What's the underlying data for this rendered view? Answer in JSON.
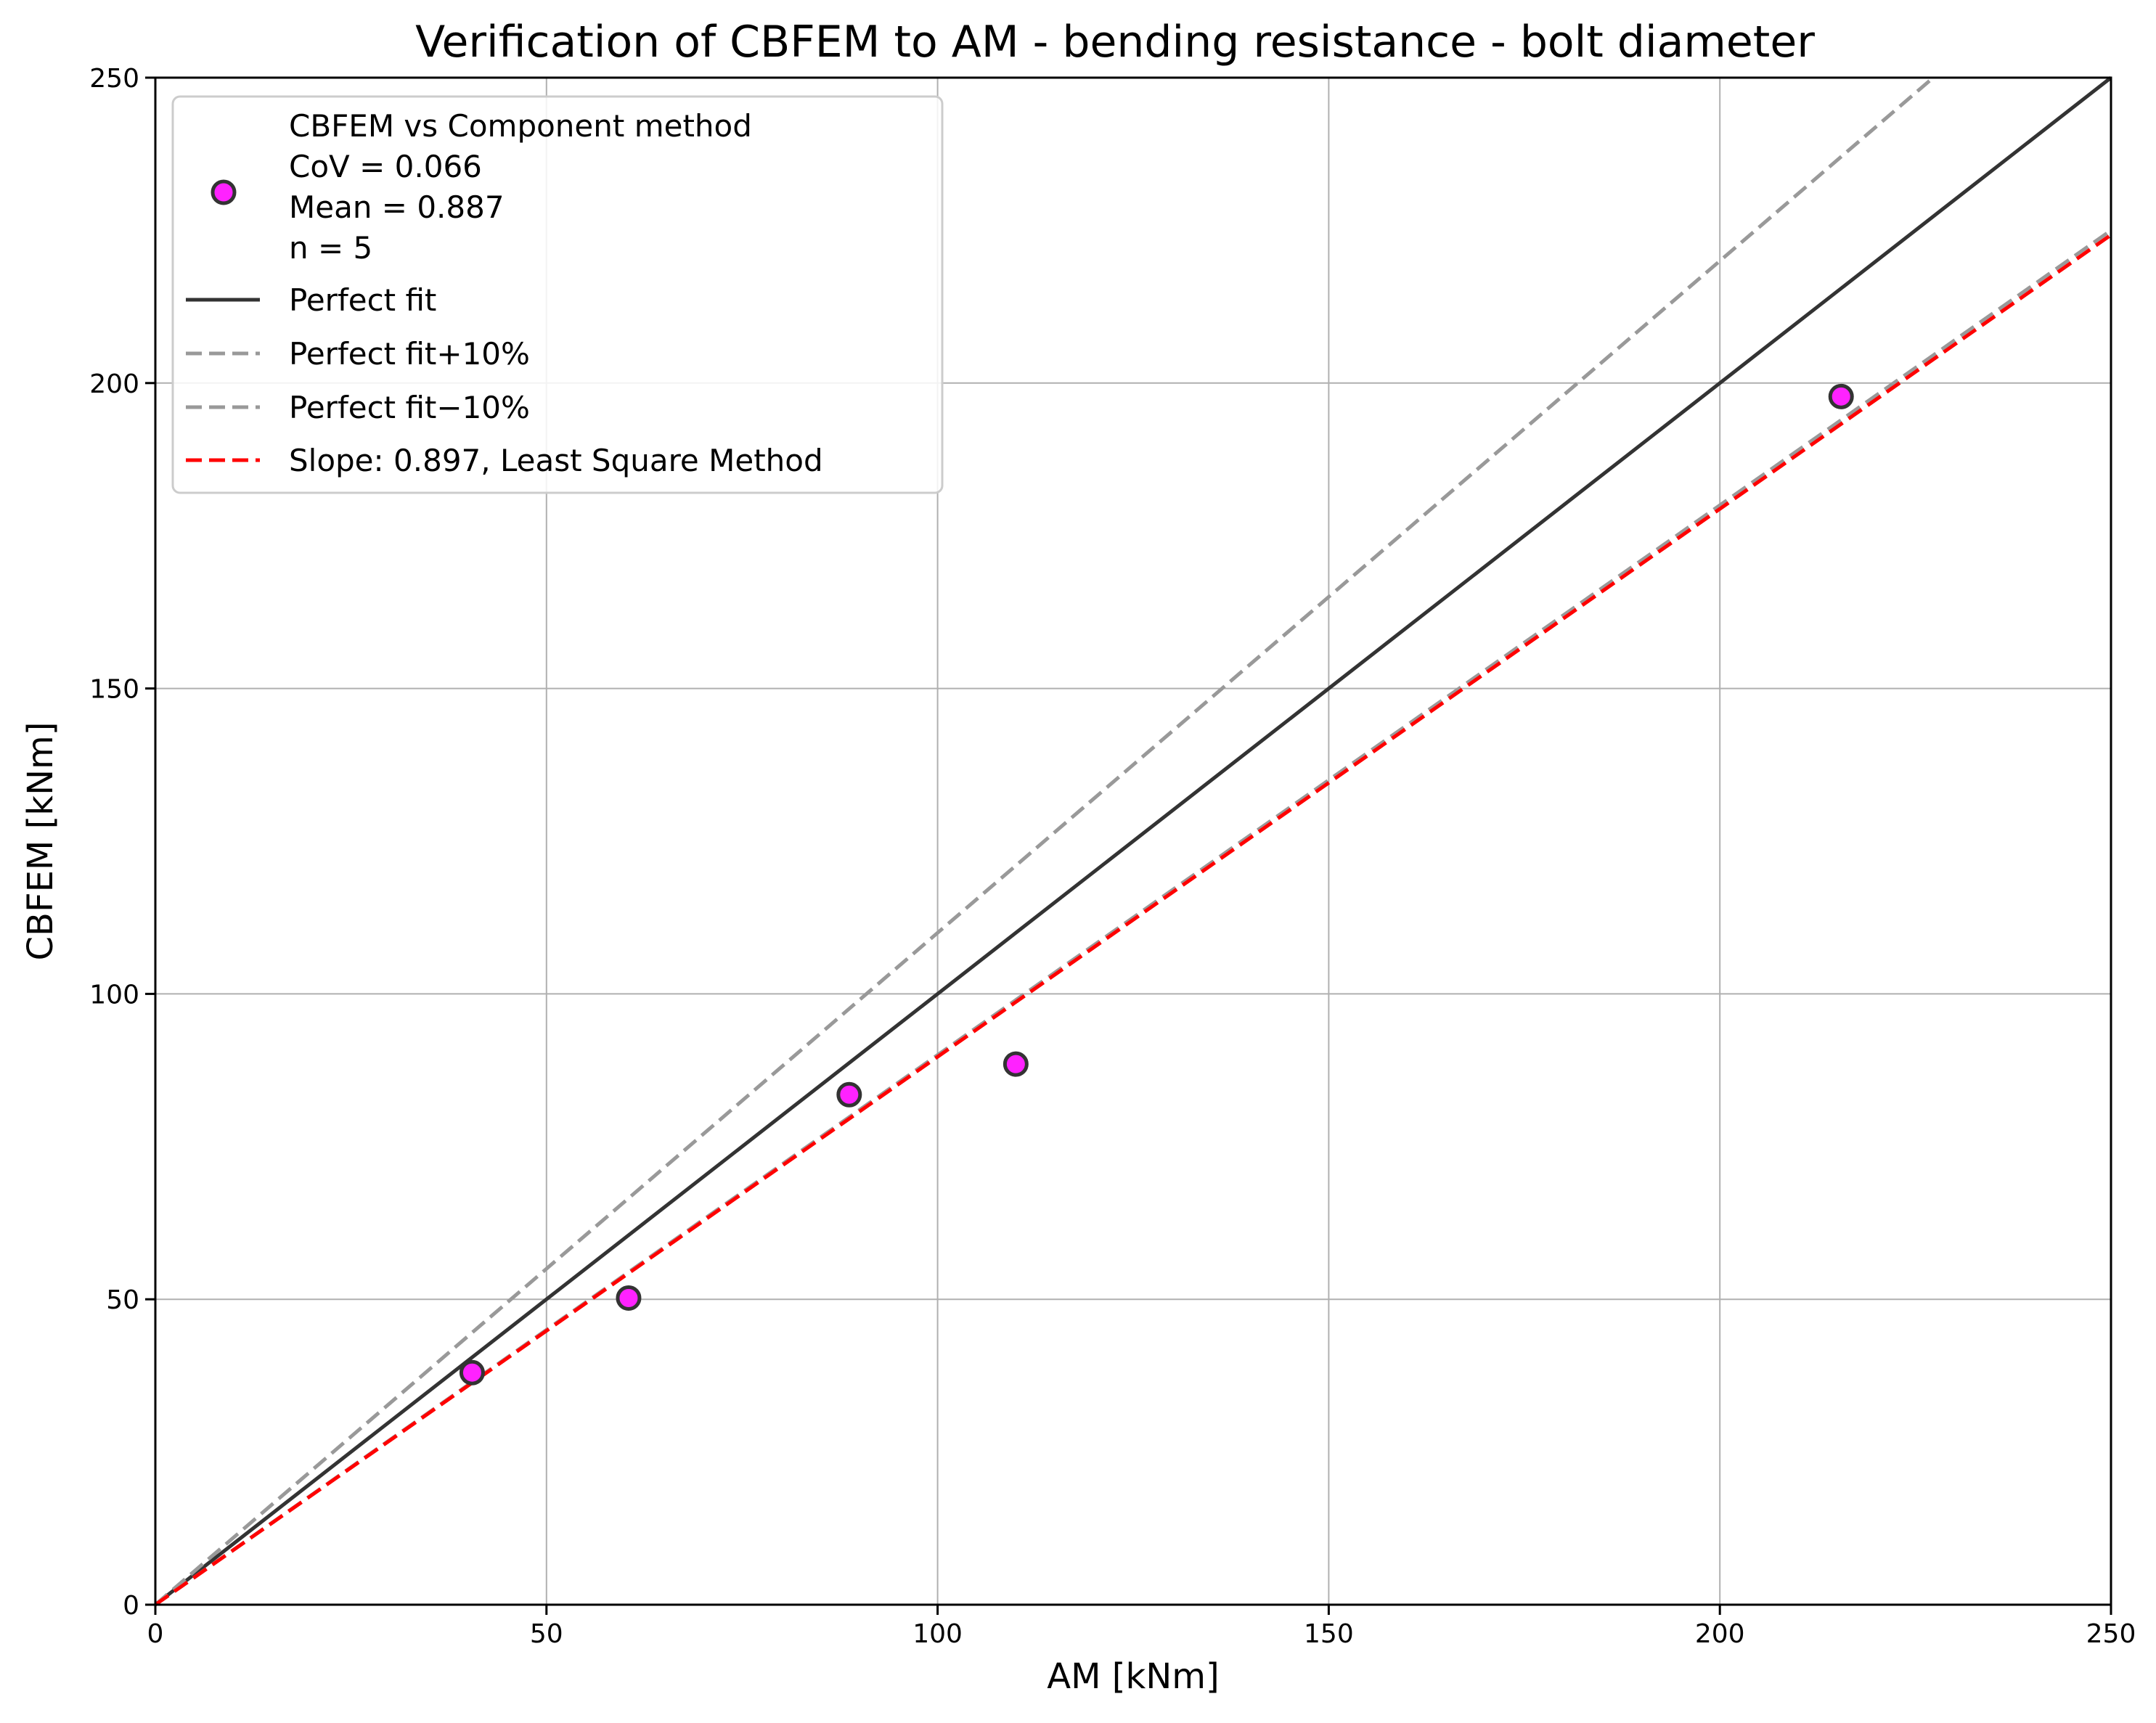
{
  "chart_data": {
    "type": "scatter",
    "title": "Verification of CBFEM to AM - bending resistance - bolt diameter",
    "xlabel": "AM [kNm]",
    "ylabel": "CBFEM [kNm]",
    "xlim": [
      0,
      250
    ],
    "ylim": [
      0,
      250
    ],
    "xticks": [
      0,
      50,
      100,
      150,
      200,
      250
    ],
    "yticks": [
      0,
      50,
      100,
      150,
      200,
      250
    ],
    "grid": true,
    "legend_position": "upper-left",
    "points": [
      {
        "x": 40.5,
        "y": 38.0
      },
      {
        "x": 60.5,
        "y": 50.2
      },
      {
        "x": 88.7,
        "y": 83.5
      },
      {
        "x": 110.0,
        "y": 88.5
      },
      {
        "x": 215.5,
        "y": 197.8
      }
    ],
    "lines": [
      {
        "label": "Perfect fit",
        "slope": 1.0,
        "color": "#333333",
        "style": "solid"
      },
      {
        "label": "Perfect fit+10%",
        "slope": 1.1,
        "color": "#999999",
        "style": "dashed"
      },
      {
        "label": "Perfect fit−10%",
        "slope": 0.9,
        "color": "#999999",
        "style": "dashed"
      },
      {
        "label": "Slope: 0.897, Least Square Method",
        "slope": 0.897,
        "color": "#ff0000",
        "style": "dashed"
      }
    ],
    "legend": {
      "scatter_lines": [
        "CBFEM vs Component method",
        "CoV = 0.066",
        "Mean = 0.887",
        "n = 5"
      ]
    },
    "colors": {
      "marker_fill": "#ff22ff",
      "marker_edge": "#333333",
      "grid": "#b0b0b0"
    }
  }
}
